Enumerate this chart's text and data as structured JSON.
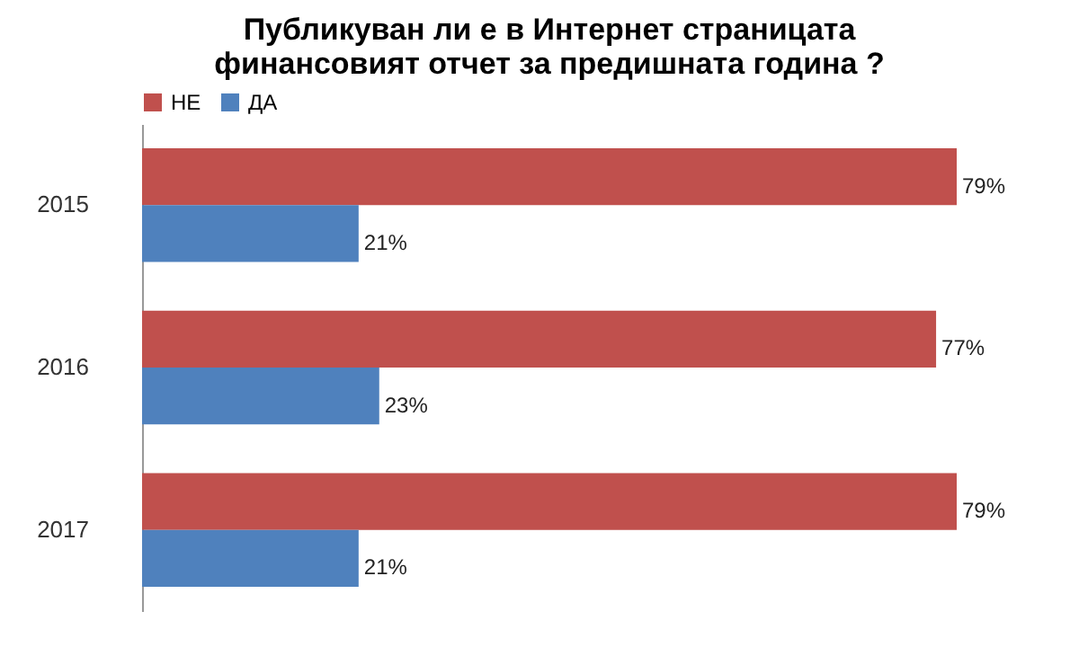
{
  "chart_data": {
    "type": "bar",
    "orientation": "horizontal",
    "title": "Публикуван ли е в Интернет страницата финансовият отчет за предишната година ?",
    "categories": [
      "2015",
      "2016",
      "2017"
    ],
    "series": [
      {
        "name": "НЕ",
        "color": "#c0504d",
        "values": [
          79,
          77,
          79
        ],
        "value_labels": [
          "79%",
          "77%",
          "79%"
        ]
      },
      {
        "name": "ДА",
        "color": "#4f81bd",
        "values": [
          21,
          23,
          21
        ],
        "value_labels": [
          "21%",
          "23%",
          "21%"
        ]
      }
    ],
    "legend": "top"
  }
}
